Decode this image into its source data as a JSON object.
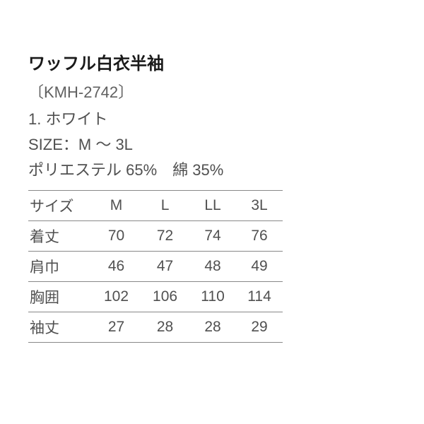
{
  "product": {
    "title": "ワッフル白衣半袖",
    "model": "〔KMH-2742〕",
    "color": "1. ホワイト",
    "size_range": "SIZE：M ～ 3L",
    "material": "ポリエステル 65%　綿 35%"
  },
  "size_table": {
    "columns": [
      "サイズ",
      "M",
      "L",
      "LL",
      "3L"
    ],
    "rows": [
      {
        "label": "着丈",
        "values": [
          "70",
          "72",
          "74",
          "76"
        ]
      },
      {
        "label": "肩巾",
        "values": [
          "46",
          "47",
          "48",
          "49"
        ]
      },
      {
        "label": "胸囲",
        "values": [
          "102",
          "106",
          "110",
          "114"
        ]
      },
      {
        "label": "袖丈",
        "values": [
          "27",
          "28",
          "28",
          "29"
        ]
      }
    ],
    "column_widths": [
      "90px",
      "67px",
      "67px",
      "67px",
      "67px"
    ],
    "border_color": "#888888",
    "text_color": "#505050",
    "font_size": 21,
    "background_color": "#ffffff"
  },
  "styling": {
    "title_color": "#1a1a1a",
    "title_fontsize": 24,
    "body_color": "#505050",
    "body_fontsize": 22,
    "background_color": "#ffffff"
  }
}
